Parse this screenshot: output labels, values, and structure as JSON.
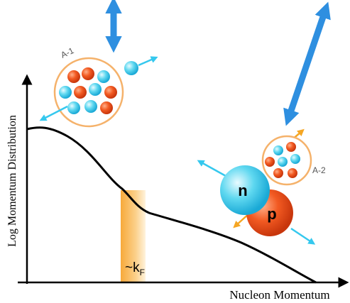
{
  "axes": {
    "y_label": "Log Momentum Distribution",
    "x_label": "Nucleon Momentum"
  },
  "nuclei": {
    "left": "A-1",
    "right": "A-2"
  },
  "pair": {
    "neutron": "n",
    "proton": "p"
  },
  "band_label": {
    "text": "~k",
    "subscript": "F"
  }
}
